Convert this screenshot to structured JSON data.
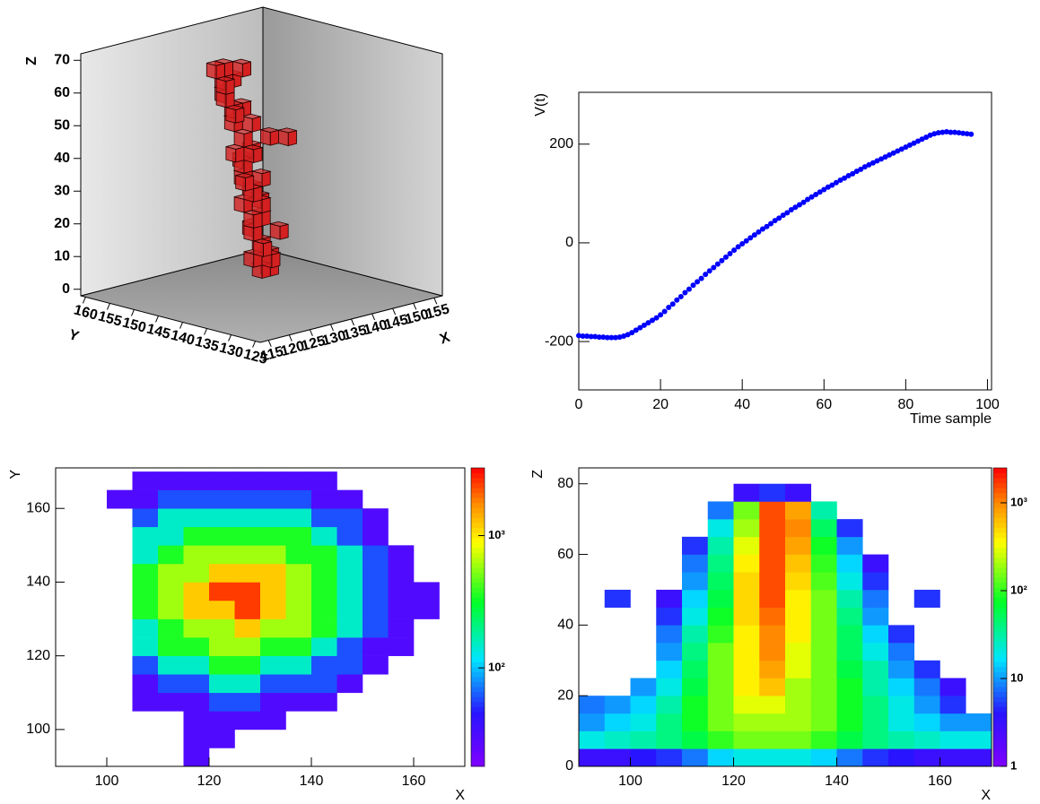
{
  "chart_data": [
    {
      "type": "box3d",
      "xlabel": "X",
      "ylabel": "Y",
      "zlabel": "Z",
      "color": "#d42020",
      "xlim": [
        113,
        157
      ],
      "ylim": [
        124,
        161
      ],
      "zlim": [
        -2,
        72
      ],
      "xticks": [
        115,
        120,
        125,
        130,
        135,
        140,
        145,
        150,
        155
      ],
      "yticks": [
        125,
        130,
        135,
        140,
        145,
        150,
        155,
        160
      ],
      "zticks": [
        0,
        10,
        20,
        30,
        40,
        50,
        60,
        70
      ],
      "x": [
        132,
        134,
        132,
        134,
        130,
        132,
        130,
        130,
        132,
        134,
        130,
        132,
        130,
        132,
        134,
        130,
        132,
        128,
        130,
        132,
        130,
        132,
        128,
        130,
        132,
        130,
        134,
        136,
        130,
        132,
        130,
        132,
        128,
        128,
        130,
        128,
        130,
        132,
        128,
        130,
        132
      ],
      "y": [
        140,
        140,
        138,
        140,
        140,
        140,
        138,
        140,
        142,
        138,
        140,
        140,
        142,
        140,
        142,
        140,
        142,
        140,
        142,
        140,
        142,
        144,
        142,
        140,
        142,
        142,
        140,
        138,
        144,
        142,
        144,
        144,
        142,
        144,
        146,
        144,
        146,
        146,
        146,
        146,
        144
      ],
      "z": [
        8,
        8,
        12,
        12,
        12,
        16,
        16,
        20,
        20,
        20,
        24,
        24,
        28,
        28,
        28,
        32,
        32,
        36,
        36,
        36,
        40,
        40,
        44,
        44,
        44,
        48,
        48,
        48,
        52,
        52,
        56,
        56,
        56,
        60,
        60,
        64,
        64,
        64,
        68,
        68,
        68
      ]
    },
    {
      "type": "scatter",
      "xlabel": "Time sample",
      "ylabel": "V(t)",
      "color": "#0000ff",
      "xlim": [
        0,
        101
      ],
      "ylim": [
        -298,
        305
      ],
      "xticks": [
        0,
        20,
        40,
        60,
        80,
        100
      ],
      "yticks": [
        -200,
        0,
        200
      ],
      "x": [
        0,
        1,
        2,
        3,
        4,
        5,
        6,
        7,
        8,
        9,
        10,
        11,
        12,
        13,
        14,
        15,
        16,
        17,
        18,
        19,
        20,
        21,
        22,
        23,
        24,
        25,
        26,
        27,
        28,
        29,
        30,
        31,
        32,
        33,
        34,
        35,
        36,
        37,
        38,
        39,
        40,
        41,
        42,
        43,
        44,
        45,
        46,
        47,
        48,
        49,
        50,
        51,
        52,
        53,
        54,
        55,
        56,
        57,
        58,
        59,
        60,
        61,
        62,
        63,
        64,
        65,
        66,
        67,
        68,
        69,
        70,
        71,
        72,
        73,
        74,
        75,
        76,
        77,
        78,
        79,
        80,
        81,
        82,
        83,
        84,
        85,
        86,
        87,
        88,
        89,
        90,
        91,
        92,
        93,
        94,
        95,
        96
      ],
      "values": [
        -188,
        -189,
        -189,
        -190,
        -190,
        -191,
        -191,
        -192,
        -192,
        -192,
        -191,
        -189,
        -186,
        -182,
        -177,
        -172,
        -167,
        -162,
        -157,
        -152,
        -146,
        -139,
        -131,
        -124,
        -116,
        -109,
        -101,
        -94,
        -86,
        -79,
        -72,
        -64,
        -57,
        -50,
        -43,
        -36,
        -29,
        -22,
        -15,
        -8,
        -2,
        4,
        10,
        16,
        22,
        28,
        33,
        39,
        45,
        50,
        56,
        61,
        67,
        72,
        77,
        82,
        88,
        93,
        98,
        103,
        108,
        113,
        117,
        122,
        127,
        131,
        136,
        140,
        145,
        149,
        154,
        158,
        162,
        166,
        170,
        174,
        178,
        182,
        186,
        190,
        194,
        198,
        202,
        206,
        210,
        214,
        218,
        221,
        223,
        224,
        225,
        224,
        224,
        223,
        222,
        221,
        220
      ]
    },
    {
      "type": "heatmap",
      "xlabel": "X",
      "ylabel": "Y",
      "log_z": true,
      "xlim": [
        90,
        170
      ],
      "ylim": [
        90,
        171
      ],
      "zlim": [
        18,
        3250
      ],
      "xticks": [
        100,
        120,
        140,
        160
      ],
      "yticks": [
        100,
        120,
        140,
        160
      ],
      "zticks": [
        {
          "value": 100,
          "label": "10²"
        },
        {
          "value": 1000,
          "label": "10³"
        }
      ],
      "xbins": [
        90,
        95,
        100,
        105,
        110,
        115,
        120,
        125,
        130,
        135,
        140,
        145,
        150,
        155,
        160,
        165,
        170
      ],
      "ybins": [
        90,
        95,
        100,
        105,
        110,
        115,
        120,
        125,
        130,
        135,
        140,
        145,
        150,
        155,
        160,
        165,
        170
      ],
      "values": [
        [
          null,
          null,
          null,
          null,
          null,
          30,
          null,
          null,
          null,
          null,
          null,
          null,
          null,
          null,
          null,
          null
        ],
        [
          null,
          null,
          null,
          null,
          null,
          30,
          30,
          null,
          null,
          null,
          null,
          null,
          null,
          null,
          null,
          null
        ],
        [
          null,
          null,
          null,
          null,
          null,
          30,
          30,
          30,
          30,
          null,
          null,
          null,
          null,
          null,
          null,
          null
        ],
        [
          null,
          null,
          null,
          30,
          30,
          30,
          60,
          60,
          30,
          30,
          30,
          null,
          null,
          null,
          null,
          null
        ],
        [
          null,
          null,
          null,
          30,
          60,
          60,
          150,
          150,
          60,
          60,
          60,
          30,
          null,
          null,
          null,
          null
        ],
        [
          null,
          null,
          null,
          60,
          150,
          150,
          350,
          350,
          150,
          150,
          60,
          60,
          30,
          null,
          null,
          null
        ],
        [
          null,
          null,
          null,
          150,
          350,
          350,
          600,
          600,
          350,
          350,
          150,
          60,
          30,
          30,
          null,
          null
        ],
        [
          null,
          null,
          null,
          150,
          350,
          600,
          600,
          1200,
          600,
          600,
          350,
          150,
          60,
          30,
          null,
          null
        ],
        [
          null,
          null,
          null,
          350,
          600,
          1200,
          1200,
          2500,
          1200,
          600,
          350,
          150,
          60,
          30,
          30,
          null
        ],
        [
          null,
          null,
          null,
          350,
          600,
          1200,
          2500,
          2500,
          1200,
          600,
          350,
          150,
          60,
          30,
          30,
          null
        ],
        [
          null,
          null,
          null,
          350,
          600,
          600,
          1200,
          1200,
          1200,
          600,
          350,
          150,
          60,
          30,
          null,
          null
        ],
        [
          null,
          null,
          null,
          150,
          350,
          600,
          600,
          600,
          600,
          350,
          350,
          150,
          60,
          30,
          null,
          null
        ],
        [
          null,
          null,
          null,
          150,
          150,
          350,
          350,
          350,
          350,
          350,
          150,
          60,
          30,
          null,
          null,
          null
        ],
        [
          null,
          null,
          null,
          60,
          150,
          150,
          150,
          150,
          150,
          150,
          60,
          60,
          30,
          null,
          null,
          null
        ],
        [
          null,
          null,
          30,
          30,
          60,
          60,
          60,
          60,
          60,
          60,
          30,
          30,
          null,
          null,
          null,
          null
        ],
        [
          null,
          null,
          null,
          30,
          30,
          30,
          30,
          30,
          30,
          30,
          30,
          null,
          null,
          null,
          null,
          null
        ]
      ]
    },
    {
      "type": "heatmap",
      "xlabel": "X",
      "ylabel": "Z",
      "log_z": true,
      "xlim": [
        90,
        170
      ],
      "ylim": [
        0,
        84.5
      ],
      "zlim": [
        1,
        2500
      ],
      "xticks": [
        100,
        120,
        140,
        160
      ],
      "yticks": [
        0,
        20,
        40,
        60,
        80
      ],
      "zticks": [
        1,
        10,
        {
          "value": 100,
          "label": "10²"
        },
        {
          "value": 1000,
          "label": "10³"
        }
      ],
      "xbins": [
        90,
        95,
        100,
        105,
        110,
        115,
        120,
        125,
        130,
        135,
        140,
        145,
        150,
        155,
        160,
        165,
        170
      ],
      "ybins": [
        0,
        5,
        10,
        15,
        20,
        25,
        30,
        35,
        40,
        45,
        50,
        55,
        60,
        65,
        70,
        75,
        80
      ],
      "values": [
        [
          3,
          3,
          4,
          5,
          8,
          15,
          20,
          20,
          20,
          15,
          8,
          5,
          4,
          3,
          3,
          3
        ],
        [
          20,
          25,
          30,
          40,
          60,
          100,
          150,
          150,
          150,
          100,
          60,
          40,
          30,
          25,
          20,
          20
        ],
        [
          10,
          15,
          20,
          40,
          80,
          150,
          200,
          200,
          200,
          150,
          80,
          40,
          20,
          15,
          10,
          10
        ],
        [
          8,
          10,
          15,
          30,
          80,
          150,
          300,
          300,
          200,
          150,
          80,
          40,
          20,
          10,
          5,
          null
        ],
        [
          null,
          null,
          10,
          20,
          60,
          150,
          400,
          600,
          200,
          150,
          80,
          30,
          15,
          8,
          3,
          null
        ],
        [
          null,
          null,
          null,
          15,
          50,
          150,
          400,
          800,
          300,
          150,
          60,
          30,
          10,
          5,
          null,
          null
        ],
        [
          null,
          null,
          null,
          10,
          40,
          150,
          400,
          1000,
          300,
          150,
          50,
          20,
          8,
          null,
          null,
          null
        ],
        [
          null,
          null,
          null,
          8,
          30,
          100,
          400,
          1000,
          400,
          150,
          50,
          15,
          5,
          null,
          null,
          null
        ],
        [
          null,
          null,
          null,
          5,
          20,
          80,
          500,
          1200,
          400,
          150,
          40,
          10,
          null,
          null,
          null,
          null
        ],
        [
          null,
          5,
          null,
          3,
          15,
          60,
          500,
          1500,
          400,
          150,
          30,
          8,
          null,
          5,
          null,
          null
        ],
        [
          null,
          null,
          null,
          null,
          10,
          50,
          500,
          1500,
          500,
          120,
          20,
          5,
          null,
          null,
          null,
          null
        ],
        [
          null,
          null,
          null,
          null,
          8,
          40,
          400,
          1500,
          600,
          100,
          15,
          3,
          null,
          null,
          null,
          null
        ],
        [
          null,
          null,
          null,
          null,
          5,
          30,
          300,
          1500,
          800,
          80,
          10,
          null,
          null,
          null,
          null,
          null
        ],
        [
          null,
          null,
          null,
          null,
          null,
          20,
          200,
          1500,
          1000,
          50,
          5,
          null,
          null,
          null,
          null,
          null
        ],
        [
          null,
          null,
          null,
          null,
          null,
          8,
          150,
          1500,
          800,
          30,
          null,
          null,
          null,
          null,
          null,
          null
        ],
        [
          null,
          null,
          null,
          null,
          null,
          null,
          3,
          5,
          3,
          null,
          null,
          null,
          null,
          null,
          null,
          null
        ]
      ]
    }
  ]
}
